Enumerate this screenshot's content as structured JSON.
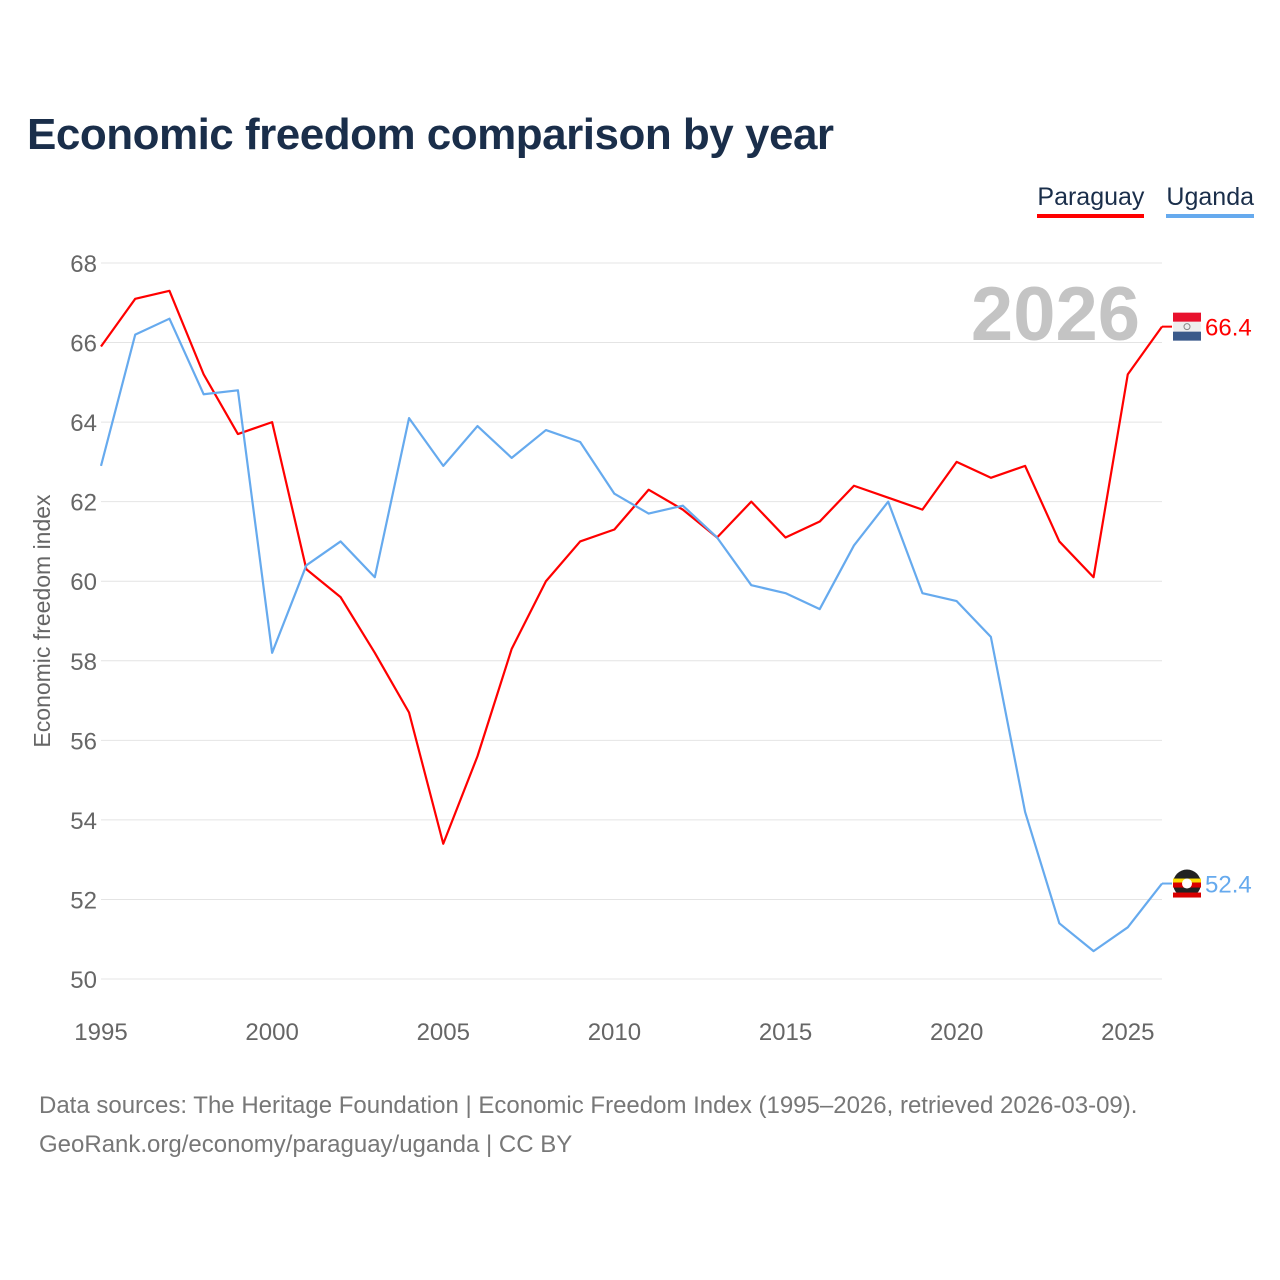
{
  "chart_data": {
    "type": "line",
    "title": "Economic freedom comparison by year",
    "xlabel": "",
    "ylabel": "Economic freedom index",
    "xlim": [
      1995,
      2026
    ],
    "ylim": [
      50,
      68
    ],
    "yticks": [
      50,
      52,
      54,
      56,
      58,
      60,
      62,
      64,
      66,
      68
    ],
    "xticks": [
      1995,
      2000,
      2005,
      2010,
      2015,
      2020,
      2025
    ],
    "grid": true,
    "legend_position": "top-right",
    "year_label": "2026",
    "x": [
      1995,
      1996,
      1997,
      1998,
      1999,
      2000,
      2001,
      2002,
      2003,
      2004,
      2005,
      2006,
      2007,
      2008,
      2009,
      2010,
      2011,
      2012,
      2013,
      2014,
      2015,
      2016,
      2017,
      2018,
      2019,
      2020,
      2021,
      2022,
      2023,
      2024,
      2025,
      2026
    ],
    "series": [
      {
        "name": "Paraguay",
        "color": "#ff0000",
        "end_label": "66.4",
        "values": [
          65.9,
          67.1,
          67.3,
          65.2,
          63.7,
          64.0,
          60.3,
          59.6,
          58.2,
          56.7,
          53.4,
          55.6,
          58.3,
          60.0,
          61.0,
          61.3,
          62.3,
          61.8,
          61.1,
          62.0,
          61.1,
          61.5,
          62.4,
          62.1,
          61.8,
          63.0,
          62.6,
          62.9,
          61.0,
          60.1,
          65.2,
          66.4
        ]
      },
      {
        "name": "Uganda",
        "color": "#66aaee",
        "end_label": "52.4",
        "values": [
          62.9,
          66.2,
          66.6,
          64.7,
          64.8,
          58.2,
          60.4,
          61.0,
          60.1,
          64.1,
          62.9,
          63.9,
          63.1,
          63.8,
          63.5,
          62.2,
          61.7,
          61.9,
          61.1,
          59.9,
          59.7,
          59.3,
          60.9,
          62.0,
          59.7,
          59.5,
          58.6,
          54.2,
          51.4,
          50.7,
          51.3,
          52.4
        ]
      }
    ]
  },
  "footer": {
    "line1": "Data sources: The Heritage Foundation | Economic Freedom Index (1995–2026, retrieved 2026-03-09).",
    "line2": "GeoRank.org/economy/paraguay/uganda | CC BY"
  }
}
